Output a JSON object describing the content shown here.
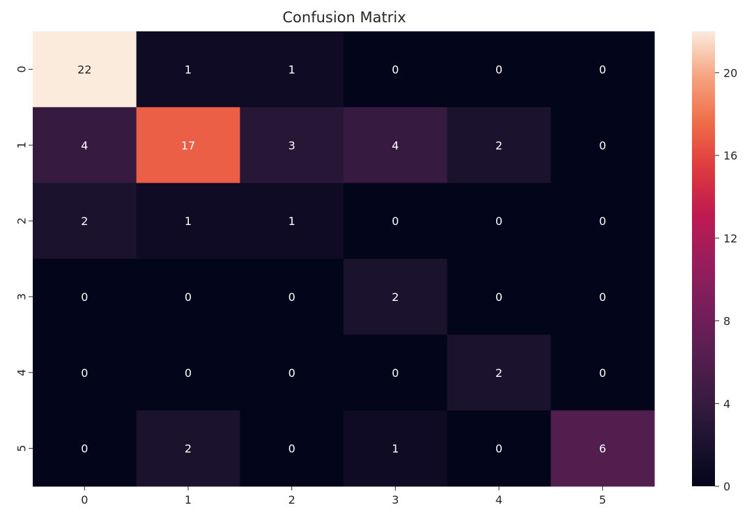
{
  "chart_data": {
    "type": "heatmap",
    "title": "Confusion Matrix",
    "xlabel": "",
    "ylabel": "",
    "x_categories": [
      "0",
      "1",
      "2",
      "3",
      "4",
      "5"
    ],
    "y_categories": [
      "0",
      "1",
      "2",
      "3",
      "4",
      "5"
    ],
    "matrix": [
      [
        22,
        1,
        1,
        0,
        0,
        0
      ],
      [
        4,
        17,
        3,
        4,
        2,
        0
      ],
      [
        2,
        1,
        1,
        0,
        0,
        0
      ],
      [
        0,
        0,
        0,
        2,
        0,
        0
      ],
      [
        0,
        0,
        0,
        0,
        2,
        0
      ],
      [
        0,
        2,
        0,
        1,
        0,
        6
      ]
    ],
    "value_range": [
      0,
      22
    ],
    "colormap": "rocket",
    "colorbar": {
      "ticks": [
        "0",
        "4",
        "8",
        "12",
        "16",
        "20"
      ],
      "tick_values": [
        0,
        4,
        8,
        12,
        16,
        20
      ]
    },
    "annotations_shown": true,
    "grid": false,
    "legend": "colorbar-right"
  }
}
